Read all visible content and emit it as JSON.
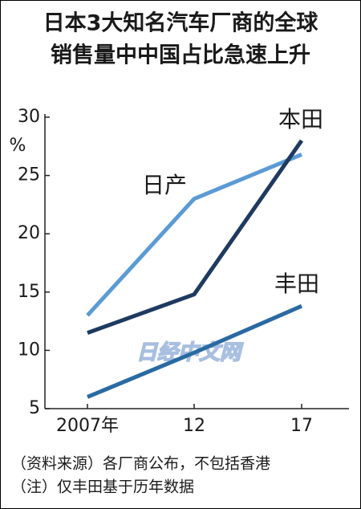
{
  "chart_data": {
    "type": "line",
    "title": [
      "日本3大知名汽车厂商的全球",
      "销售量中中国占比急速上升"
    ],
    "y_unit": "%",
    "categories": [
      "2007年",
      "12",
      "17"
    ],
    "series": [
      {
        "name": "日产",
        "color": "#5b9bd5",
        "values": [
          13,
          23,
          26.8
        ]
      },
      {
        "name": "本田",
        "color": "#1f3a60",
        "values": [
          11.5,
          14.8,
          28
        ]
      },
      {
        "name": "丰田",
        "color": "#2a6aa3",
        "values": [
          6,
          9.8,
          13.8
        ]
      }
    ],
    "ylim": [
      5,
      30
    ],
    "yticks": [
      5,
      10,
      15,
      20,
      25,
      30
    ],
    "watermark": "日经中文网",
    "notes": [
      "（资料来源）各厂商公布，不包括香港",
      "（注）仅丰田基于历年数据"
    ]
  }
}
